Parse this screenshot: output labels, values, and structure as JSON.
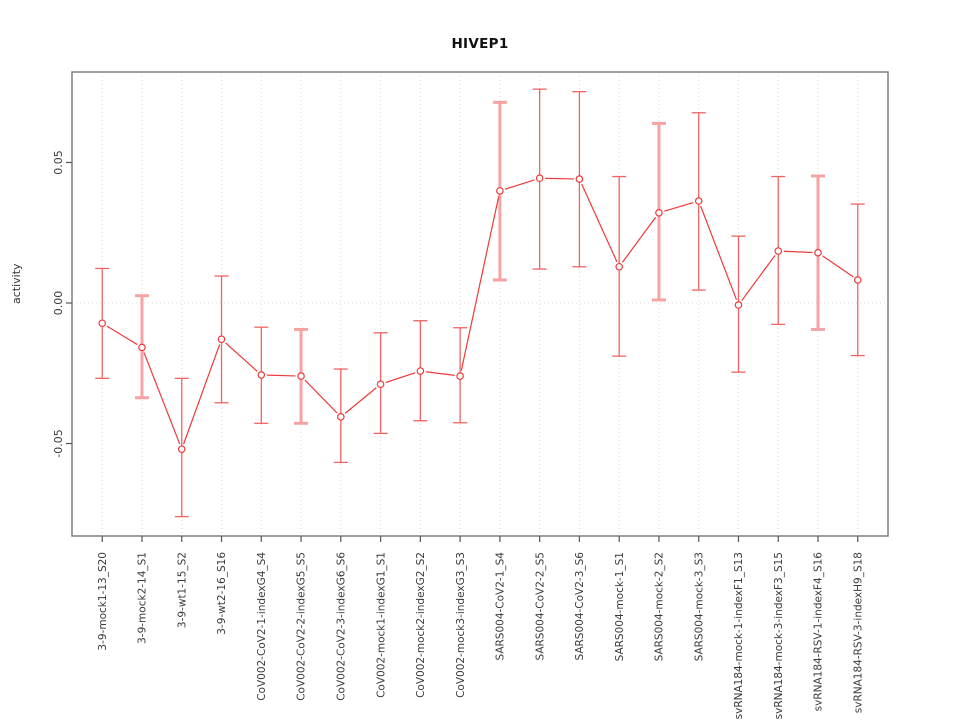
{
  "title": "HIVEP1",
  "ylabel": "activity",
  "colors": {
    "line": "#ee3a3a",
    "marker_fill": "#ffffff",
    "errorbar_thin": "#f26262",
    "errorbar_thick": "#f8a3a3",
    "grid": "#d9d9d9",
    "zero_line": "#dcdcdc",
    "box": "#808080",
    "tick": "#555555",
    "tick_text": "#3a3a3a",
    "title_text": "#111111"
  },
  "chart_data": {
    "type": "line",
    "title": "HIVEP1",
    "xlabel": "",
    "ylabel": "activity",
    "ylim": [
      -0.0829,
      0.0822
    ],
    "yticks": [
      -0.05,
      0,
      0.05
    ],
    "grid": "vertical dotted gridline at every category; dotted horizontal line at y=0 only",
    "legend_position": "none",
    "marker": "open-circle",
    "categories": [
      "3-9-mock1-13_S20",
      "3-9-mock2-14_S1",
      "3-9-wt1-15_S2",
      "3-9-wt2-16_S16",
      "CoV002-CoV2-1-indexG4_S4",
      "CoV002-CoV2-2-indexG5_S5",
      "CoV002-CoV2-3-indexG6_S6",
      "CoV002-mock1-indexG1_S1",
      "CoV002-mock2-indexG2_S2",
      "CoV002-mock3-indexG3_S3",
      "SARS004-CoV2-1_S4",
      "SARS004-CoV2-2_S5",
      "SARS004-CoV2-3_S6",
      "SARS004-mock-1_S1",
      "SARS004-mock-2_S2",
      "SARS004-mock-3_S3",
      "svRNA184-mock-1-indexF1_S13",
      "svRNA184-mock-3-indexF3_S15",
      "svRNA184-RSV-1-indexF4_S16",
      "svRNA184-RSV-3-indexH9_S18"
    ],
    "series": [
      {
        "name": "activity",
        "values": [
          -0.0072,
          -0.0158,
          -0.052,
          -0.0129,
          -0.0256,
          -0.026,
          -0.0405,
          -0.0289,
          -0.0242,
          -0.026,
          0.0399,
          0.0444,
          0.0441,
          0.0129,
          0.0321,
          0.0363,
          -0.0007,
          0.0185,
          0.0179,
          0.0082
        ],
        "ci_low": [
          -0.0268,
          -0.0337,
          -0.076,
          -0.0355,
          -0.0428,
          -0.0428,
          -0.0567,
          -0.0464,
          -0.0419,
          -0.0426,
          0.0082,
          0.0121,
          0.0129,
          -0.0189,
          0.0011,
          0.0046,
          -0.0246,
          -0.0076,
          -0.0094,
          -0.0187
        ],
        "ci_high": [
          0.0123,
          0.0026,
          -0.0268,
          0.0096,
          -0.0086,
          -0.0094,
          -0.0235,
          -0.0106,
          -0.0063,
          -0.0088,
          0.0714,
          0.0761,
          0.0752,
          0.045,
          0.0639,
          0.0677,
          0.0238,
          0.045,
          0.0452,
          0.0352
        ],
        "thick_bar": [
          false,
          true,
          false,
          false,
          false,
          true,
          false,
          false,
          false,
          false,
          true,
          false,
          false,
          false,
          true,
          false,
          false,
          false,
          true,
          false
        ]
      }
    ]
  }
}
